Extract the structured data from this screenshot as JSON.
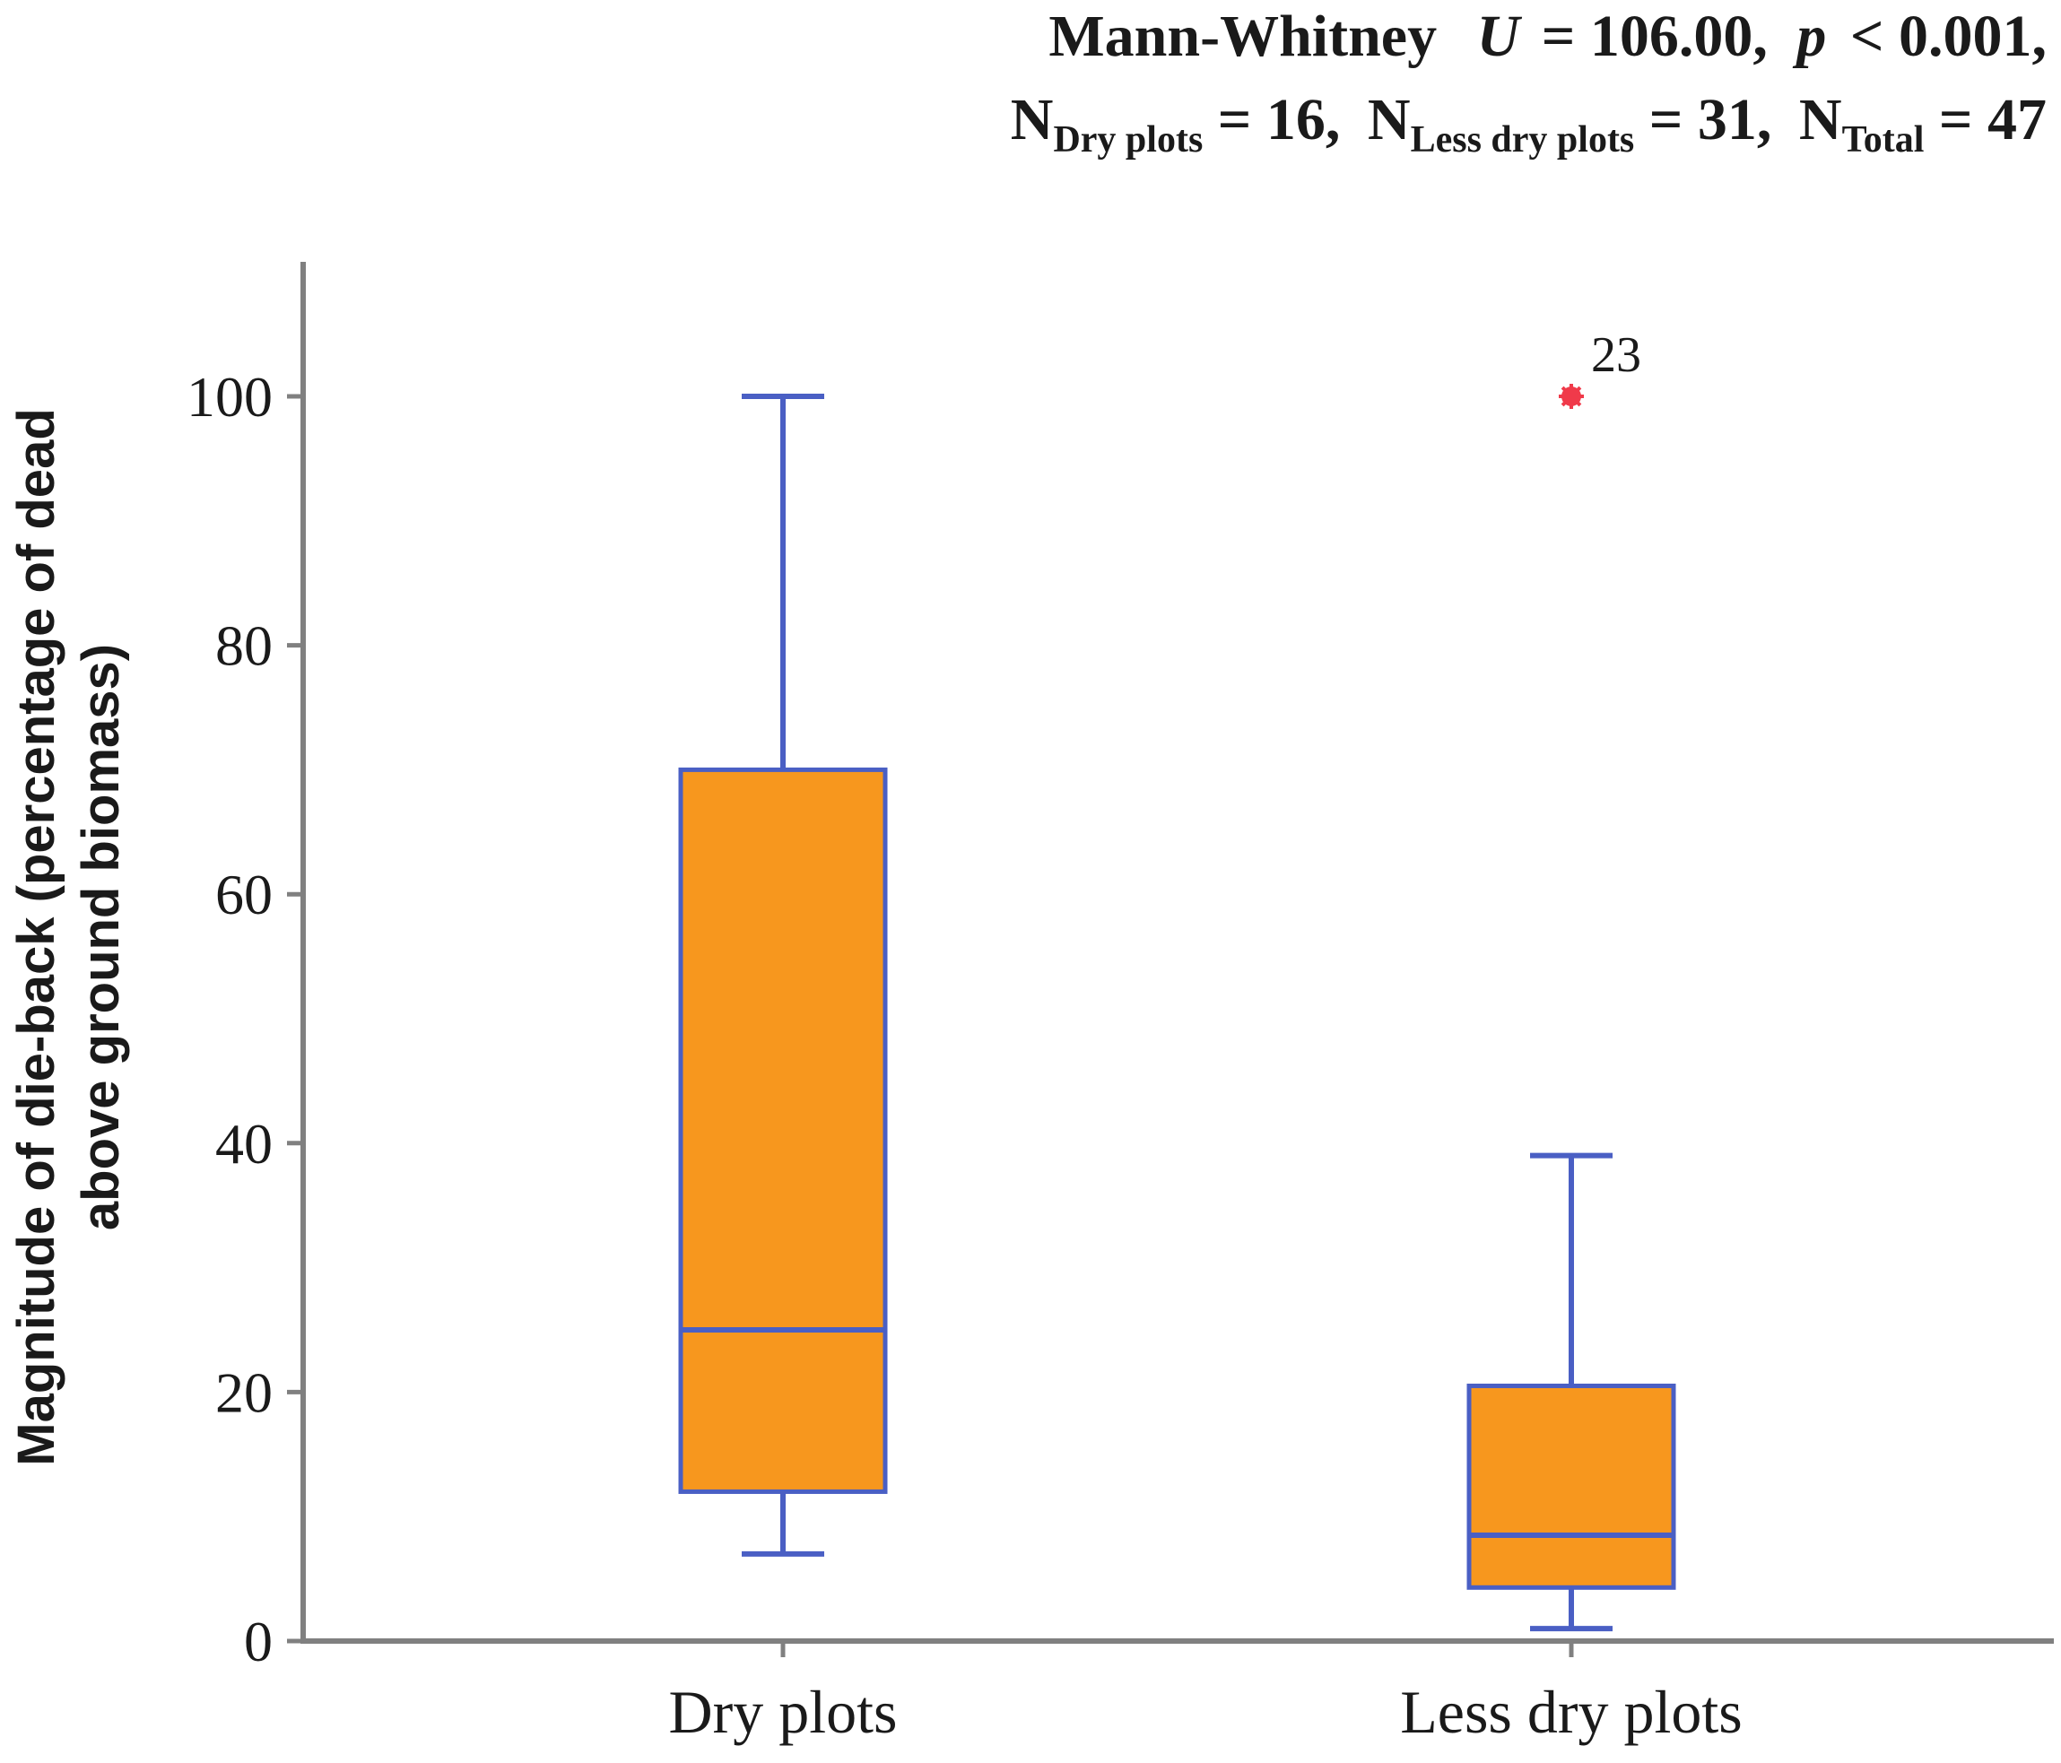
{
  "chart_data": {
    "type": "box",
    "annotation": {
      "line1_test": "Mann-Whitney",
      "line1_u_symbol": "U",
      "line1_u_value": "= 106.00,",
      "line1_p_symbol": "p",
      "line1_p_value": "< 0.001,",
      "line2": [
        {
          "base": "N",
          "sub": "Dry plots",
          "value": " = 16,"
        },
        {
          "base": "N",
          "sub": "Less dry plots",
          "value": " = 31,"
        },
        {
          "base": "N",
          "sub": "Total",
          "value": " = 47"
        }
      ]
    },
    "ylabel_line1": "Magnitude of die-back (percentage of dead",
    "ylabel_line2": "above ground biomass)",
    "ylim": [
      0,
      110
    ],
    "yticks": [
      0,
      20,
      40,
      60,
      80,
      100
    ],
    "categories": [
      "Dry plots",
      "Less dry plots"
    ],
    "boxes": [
      {
        "name": "Dry plots",
        "whisker_low": 7,
        "q1": 12,
        "median": 25,
        "q3": 70,
        "whisker_high": 100,
        "outliers": []
      },
      {
        "name": "Less dry plots",
        "whisker_low": 1,
        "q1": 4.3,
        "median": 8.5,
        "q3": 20.5,
        "whisker_high": 39,
        "outliers": [
          {
            "value": 100,
            "label": "23"
          }
        ]
      }
    ],
    "colors": {
      "box_fill": "#f7971e",
      "box_stroke": "#4a5fc4",
      "outlier": "#f03a4a",
      "axis": "#808080",
      "text": "#1a1a1a"
    }
  }
}
